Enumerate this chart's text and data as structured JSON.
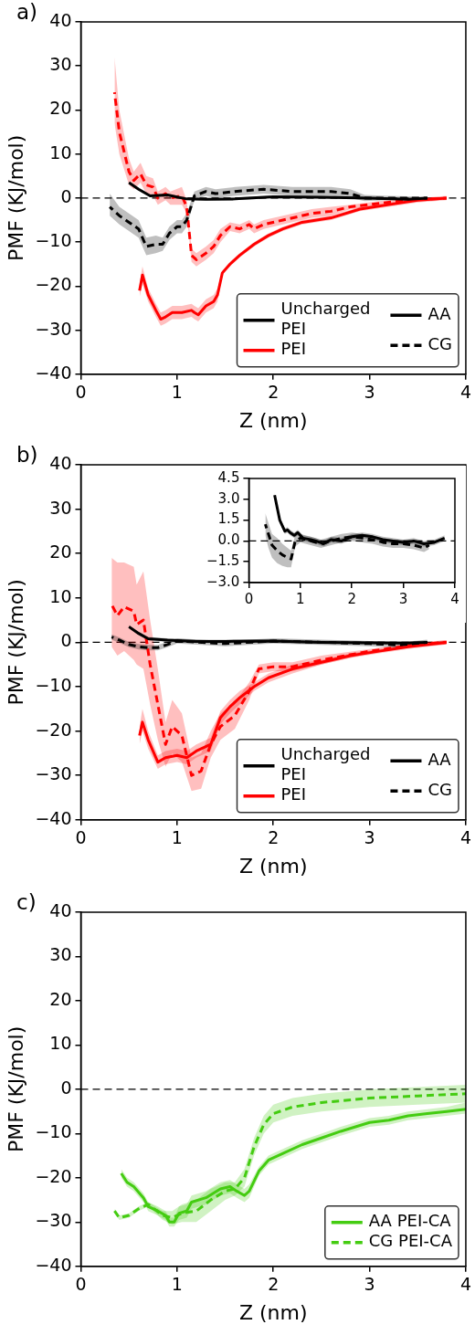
{
  "chart_data": [
    {
      "type": "line",
      "title": "a)",
      "xlabel": "Z (nm)",
      "ylabel": "PMF (KJ/mol)",
      "xlim": [
        0,
        4
      ],
      "ylim": [
        -40,
        40
      ],
      "xticks": [
        0,
        1,
        2,
        3,
        4
      ],
      "yticks": [
        -40,
        -30,
        -20,
        -10,
        0,
        10,
        20,
        30,
        40
      ],
      "marker": "none",
      "legend": "bottom right",
      "ref_lines": [
        {
          "axis": "y",
          "value": 0,
          "color": "#000000",
          "line_style": "dashed"
        }
      ],
      "annotations": [
        "AA",
        "CG"
      ],
      "series": [
        {
          "name": "Uncharged PEI",
          "color": "#000000",
          "line_style": "solid",
          "x": [
            0.5,
            0.6,
            0.72,
            0.9,
            1.1,
            1.3,
            1.6,
            2,
            2.5,
            3,
            3.4,
            3.6
          ],
          "values": [
            3.5,
            2,
            0.5,
            0.7,
            -0.2,
            -0.3,
            -0.2,
            0.3,
            0.2,
            0,
            -0.3,
            0
          ],
          "lower": [
            3.2,
            1.7,
            0.2,
            0.4,
            -0.5,
            -0.6,
            -0.5,
            0,
            -0.1,
            -0.3,
            -0.6,
            -0.3
          ],
          "upper": [
            3.8,
            2.3,
            0.8,
            1,
            0.1,
            0,
            0.1,
            0.6,
            0.5,
            0.3,
            0,
            0.3
          ]
        },
        {
          "color": "#000000",
          "line_style": "dashed",
          "x": [
            0.3,
            0.4,
            0.5,
            0.6,
            0.68,
            0.78,
            0.85,
            0.92,
            1.0,
            1.05,
            1.1,
            1.18,
            1.3,
            1.4,
            1.6,
            1.9,
            2.2,
            2.6,
            2.8,
            2.95,
            3.2,
            3.4,
            3.6
          ],
          "values": [
            -2,
            -4,
            -5.5,
            -7,
            -11,
            -10.5,
            -10.5,
            -8,
            -6.5,
            -6.5,
            -5,
            0.5,
            1.5,
            1,
            1.5,
            2,
            1.5,
            1.5,
            1,
            0,
            0,
            0,
            0
          ],
          "lower": [
            -4,
            -6,
            -7.5,
            -9,
            -13,
            -12.5,
            -12,
            -9.5,
            -8,
            -8,
            -6.5,
            -0.5,
            0.5,
            0,
            0.5,
            1,
            0.5,
            0.5,
            0,
            -0.7,
            -0.5,
            -0.4,
            -0.3
          ],
          "upper": [
            1,
            -2,
            -3.5,
            -5,
            -9,
            -8.5,
            -9,
            -6.5,
            -5,
            -5,
            -3.5,
            1.5,
            2.5,
            2,
            2.5,
            3,
            2.5,
            2.5,
            2,
            0.7,
            0.5,
            0.4,
            0.3
          ]
        },
        {
          "name": "PEI",
          "color": "#ff0000",
          "line_style": "solid",
          "x": [
            0.61,
            0.64,
            0.7,
            0.78,
            0.83,
            0.88,
            0.95,
            1.05,
            1.15,
            1.18,
            1.22,
            1.3,
            1.38,
            1.42,
            1.47,
            1.55,
            1.65,
            1.8,
            1.95,
            2.1,
            2.3,
            2.6,
            2.9,
            3.2,
            3.5,
            3.8
          ],
          "values": [
            -21,
            -17.5,
            -22,
            -25.5,
            -27.5,
            -27,
            -26,
            -26,
            -25.5,
            -26,
            -26.5,
            -24.5,
            -23.5,
            -22,
            -17,
            -15,
            -13,
            -10.5,
            -8.5,
            -7,
            -5.5,
            -4.5,
            -2.5,
            -1.5,
            -0.5,
            0
          ],
          "lower": [
            -22.5,
            -19.5,
            -23.5,
            -27,
            -29,
            -28.5,
            -27.5,
            -27.5,
            -27,
            -27.5,
            -28,
            -26,
            -25,
            -23.5,
            -17.5,
            -15.5,
            -13.5,
            -11,
            -9,
            -7.5,
            -6,
            -5,
            -3,
            -2,
            -1,
            -0.5
          ],
          "upper": [
            -19.5,
            -15.5,
            -20.5,
            -24,
            -26,
            -25.5,
            -24.5,
            -24.5,
            -24,
            -24.5,
            -25,
            -23,
            -22,
            -20.5,
            -16.5,
            -14.5,
            -12.5,
            -10,
            -8,
            -6.5,
            -5,
            -4,
            -2,
            -1,
            0,
            0.5
          ]
        },
        {
          "color": "#ff0000",
          "line_style": "dashed",
          "x": [
            0.35,
            0.4,
            0.5,
            0.55,
            0.62,
            0.68,
            0.75,
            0.8,
            0.88,
            0.93,
            1.05,
            1.1,
            1.15,
            1.2,
            1.3,
            1.38,
            1.45,
            1.55,
            1.65,
            1.75,
            1.8,
            1.9,
            2.1,
            2.4,
            2.6,
            2.8,
            3.1,
            3.4,
            3.8
          ],
          "values": [
            24,
            15,
            6,
            4,
            5.5,
            3,
            2.5,
            0,
            1,
            0,
            0.5,
            -2,
            -13,
            -14,
            -12.5,
            -11,
            -8.5,
            -6.5,
            -7,
            -6,
            -7,
            -6,
            -5,
            -3.5,
            -3,
            -2,
            -1.2,
            -0.5,
            0
          ],
          "lower": [
            17,
            10,
            3,
            2,
            3.5,
            1,
            0.5,
            -1.5,
            -0.5,
            -1.5,
            -1.5,
            -3.5,
            -14.5,
            -15.5,
            -14,
            -12.5,
            -10,
            -7.5,
            -8,
            -7,
            -8,
            -7,
            -6,
            -4.5,
            -4,
            -2.5,
            -1.7,
            -1,
            -0.3
          ],
          "upper": [
            32,
            20,
            9,
            6,
            8,
            5,
            4.5,
            1.5,
            2.5,
            1.5,
            2.5,
            -0.5,
            -11.5,
            -12.5,
            -11,
            -9.5,
            -7,
            -5.5,
            -6,
            -5,
            -6,
            -5,
            -4,
            -2.5,
            -2,
            -1.5,
            -0.7,
            0,
            0.3
          ]
        }
      ]
    },
    {
      "type": "line",
      "title": "b)",
      "xlabel": "Z (nm)",
      "ylabel": "PMF (KJ/mol)",
      "xlim": [
        0,
        4
      ],
      "ylim": [
        -40,
        40
      ],
      "xticks": [
        0,
        1,
        2,
        3,
        4
      ],
      "yticks": [
        -40,
        -30,
        -20,
        -10,
        0,
        10,
        20,
        30,
        40
      ],
      "marker": "none",
      "legend": "bottom right",
      "ref_lines": [
        {
          "axis": "y",
          "value": 0,
          "color": "#000000",
          "line_style": "dashed"
        }
      ],
      "annotations": [
        "AA",
        "CG"
      ],
      "series": [
        {
          "name": "Uncharged PEI",
          "color": "#000000",
          "line_style": "solid",
          "x": [
            0.5,
            0.6,
            0.7,
            0.9,
            1.2,
            1.5,
            2,
            2.5,
            3,
            3.4,
            3.6
          ],
          "values": [
            3.5,
            2,
            0.8,
            0.5,
            0.2,
            0.2,
            0.3,
            0,
            -0.1,
            -0.2,
            0
          ],
          "lower": [
            3.1,
            1.6,
            0.4,
            0.1,
            -0.2,
            -0.2,
            -0.1,
            -0.4,
            -0.5,
            -0.6,
            -0.4
          ],
          "upper": [
            3.9,
            2.4,
            1.2,
            0.9,
            0.6,
            0.6,
            0.7,
            0.4,
            0.3,
            0.2,
            0.4
          ]
        },
        {
          "color": "#000000",
          "line_style": "dashed",
          "x": [
            0.32,
            0.4,
            0.5,
            0.6,
            0.7,
            0.8,
            0.9,
            1.0,
            1.5,
            2.0,
            2.5,
            3.0,
            3.3,
            3.6
          ],
          "values": [
            1.2,
            0.5,
            -0.5,
            -1,
            -1.2,
            -1.2,
            -0.5,
            0.3,
            -0.3,
            0.3,
            0,
            -0.3,
            -0.6,
            0
          ],
          "lower": [
            0.6,
            -0.1,
            -1.1,
            -1.6,
            -1.8,
            -1.8,
            -1.1,
            -0.3,
            -0.9,
            -0.3,
            -0.6,
            -0.9,
            -1.2,
            -0.6
          ],
          "upper": [
            1.8,
            1.1,
            0.1,
            -0.4,
            -0.6,
            -0.6,
            0.1,
            0.9,
            0.3,
            0.9,
            0.6,
            0.3,
            0,
            0.6
          ]
        },
        {
          "name": "PEI",
          "color": "#ff0000",
          "line_style": "solid",
          "x": [
            0.61,
            0.64,
            0.7,
            0.8,
            0.88,
            1.0,
            1.1,
            1.2,
            1.35,
            1.45,
            1.55,
            1.65,
            1.8,
            1.95,
            2.2,
            2.5,
            2.8,
            3.1,
            3.4,
            3.8
          ],
          "values": [
            -21,
            -18,
            -22,
            -27,
            -26,
            -25.5,
            -26,
            -24.5,
            -23,
            -17,
            -14.5,
            -12.5,
            -10,
            -8,
            -6,
            -4.5,
            -3,
            -2,
            -1,
            0
          ],
          "lower": [
            -23,
            -20,
            -24,
            -28.5,
            -27.5,
            -27,
            -27.5,
            -26,
            -24.5,
            -18.5,
            -16,
            -14,
            -11,
            -9,
            -7,
            -5,
            -3.5,
            -2.5,
            -1.5,
            -0.5
          ],
          "upper": [
            -19,
            -15,
            -20,
            -25.5,
            -24.5,
            -24,
            -24.5,
            -23,
            -21.5,
            -15.5,
            -13,
            -11,
            -9,
            -7,
            -5,
            -4,
            -2.5,
            -1.5,
            -0.5,
            0.5
          ]
        },
        {
          "color": "#ff0000",
          "line_style": "dashed",
          "x": [
            0.32,
            0.38,
            0.45,
            0.55,
            0.58,
            0.65,
            0.72,
            0.8,
            0.88,
            0.95,
            1.05,
            1.15,
            1.25,
            1.35,
            1.45,
            1.6,
            1.75,
            1.85,
            2.0,
            2.2,
            2.5,
            3.0,
            3.5,
            3.8
          ],
          "values": [
            8.5,
            6,
            8,
            7,
            4,
            5,
            -5,
            -14,
            -23,
            -19,
            -21,
            -30,
            -29,
            -23,
            -19,
            -16.5,
            -11,
            -6,
            -5.5,
            -5.5,
            -4,
            -2,
            -0.5,
            0
          ],
          "lower": [
            -1,
            -3,
            -2,
            -4,
            -5,
            -6,
            -14,
            -22,
            -28,
            -25,
            -27,
            -33.5,
            -33,
            -26,
            -22,
            -19.5,
            -13,
            -7,
            -6.5,
            -6.5,
            -5,
            -2.5,
            -1,
            -0.5
          ],
          "upper": [
            19,
            18,
            18,
            17,
            13,
            16,
            5,
            -6,
            -18,
            -13,
            -16,
            -26,
            -25,
            -20,
            -16,
            -13.5,
            -9,
            -5,
            -4.5,
            -4.5,
            -3,
            -1.5,
            0,
            0.5
          ]
        }
      ]
    },
    {
      "type": "line",
      "xlim": [
        0,
        4
      ],
      "ylim": [
        -3,
        4.5
      ],
      "xticks": [
        0,
        1,
        2,
        3,
        4
      ],
      "yticks": [
        {
          "value": -3,
          "label": "−3.0"
        },
        {
          "value": -1.5,
          "label": "−1.5"
        },
        {
          "value": 0,
          "label": "0.0"
        },
        {
          "value": 1.5,
          "label": "1.5"
        },
        {
          "value": 3,
          "label": "3.0"
        },
        {
          "value": 4.5,
          "label": "4.5"
        }
      ],
      "marker": "none",
      "ref_lines": [
        {
          "axis": "y",
          "value": 0,
          "color": "#000000",
          "line_style": "dashed"
        }
      ],
      "series": [
        {
          "color": "#000000",
          "line_style": "solid",
          "x": [
            0.5,
            0.6,
            0.7,
            0.75,
            0.8,
            0.88,
            0.95,
            1.05,
            1.2,
            1.3,
            1.45,
            1.6,
            1.8,
            2.0,
            2.2,
            2.4,
            2.6,
            2.8,
            3.0,
            3.2,
            3.4,
            3.6,
            3.8
          ],
          "values": [
            3.3,
            1.5,
            0.7,
            0.8,
            0.6,
            0.4,
            0.6,
            0.2,
            0.1,
            0,
            -0.2,
            0.1,
            0,
            0.3,
            0.4,
            0.3,
            0.1,
            0,
            -0.1,
            0,
            -0.2,
            -0.1,
            0.2
          ],
          "lower": [
            3.1,
            1.3,
            0.5,
            0.6,
            0.4,
            0.2,
            0.4,
            0,
            -0.1,
            -0.2,
            -0.4,
            -0.1,
            -0.2,
            0.1,
            0.2,
            0.1,
            -0.1,
            -0.2,
            -0.3,
            -0.2,
            -0.4,
            -0.3,
            0
          ],
          "upper": [
            3.5,
            1.7,
            0.9,
            1,
            0.8,
            0.6,
            0.8,
            0.4,
            0.3,
            0.2,
            0,
            0.3,
            0.2,
            0.5,
            0.6,
            0.5,
            0.3,
            0.2,
            0.1,
            0.2,
            0,
            0.1,
            0.4
          ]
        },
        {
          "color": "#000000",
          "line_style": "dashed",
          "x": [
            0.32,
            0.38,
            0.45,
            0.55,
            0.65,
            0.75,
            0.82,
            0.9,
            1.0,
            1.2,
            1.4,
            1.6,
            1.8,
            2.0,
            2.2,
            2.4,
            2.6,
            2.8,
            3.0,
            3.2,
            3.4,
            3.5
          ],
          "values": [
            1.2,
            0.5,
            -0.3,
            -0.7,
            -1.0,
            -1.2,
            -1.3,
            0,
            0.2,
            0,
            -0.2,
            0,
            0.2,
            0.3,
            0.2,
            0.1,
            -0.1,
            -0.2,
            -0.2,
            -0.3,
            -0.5,
            -0.3
          ],
          "lower": [
            0.4,
            -0.5,
            -1.2,
            -1.6,
            -1.8,
            -1.9,
            -1.9,
            -0.4,
            -0.1,
            -0.3,
            -0.5,
            -0.3,
            -0.1,
            0,
            -0.1,
            -0.2,
            -0.4,
            -0.5,
            -0.5,
            -0.6,
            -0.8,
            -0.6
          ],
          "upper": [
            2.0,
            1.3,
            0.5,
            0.2,
            -0.2,
            -0.5,
            -0.7,
            0.4,
            0.5,
            0.3,
            0.1,
            0.3,
            0.5,
            0.6,
            0.5,
            0.4,
            0.2,
            0.1,
            0.1,
            0,
            -0.2,
            0
          ]
        }
      ]
    },
    {
      "type": "line",
      "title": "c)",
      "xlabel": "Z (nm)",
      "ylabel": "PMF (KJ/mol)",
      "xlim": [
        0,
        4
      ],
      "ylim": [
        -40,
        40
      ],
      "xticks": [
        0,
        1,
        2,
        3,
        4
      ],
      "yticks": [
        -40,
        -30,
        -20,
        -10,
        0,
        10,
        20,
        30,
        40
      ],
      "marker": "none",
      "legend": "bottom right",
      "ref_lines": [
        {
          "axis": "y",
          "value": 0,
          "color": "#000000",
          "line_style": "dashed"
        }
      ],
      "series": [
        {
          "name": "AA PEI-CA",
          "color": "#44cc11",
          "line_style": "solid",
          "x": [
            0.42,
            0.48,
            0.55,
            0.65,
            0.7,
            0.8,
            0.88,
            0.92,
            0.97,
            1.02,
            1.1,
            1.15,
            1.3,
            1.45,
            1.55,
            1.62,
            1.7,
            1.75,
            1.85,
            1.95,
            2.1,
            2.3,
            2.5,
            2.7,
            3.0,
            3.2,
            3.4,
            3.6,
            3.8,
            4.0
          ],
          "values": [
            -19,
            -21,
            -22,
            -24.5,
            -26.5,
            -27.5,
            -28.5,
            -30,
            -30,
            -28,
            -27.5,
            -25.5,
            -24.5,
            -22.5,
            -22,
            -23,
            -24,
            -23,
            -18.5,
            -16,
            -14.5,
            -12.5,
            -11,
            -9.5,
            -7.5,
            -7,
            -6,
            -5.5,
            -5,
            -4.5
          ],
          "lower": [
            -20,
            -22,
            -23,
            -25.5,
            -27.5,
            -28.5,
            -29.5,
            -31,
            -31,
            -29.5,
            -29,
            -27,
            -26,
            -24,
            -23.5,
            -24.5,
            -25.5,
            -24.5,
            -19.5,
            -17,
            -15.5,
            -13.5,
            -12,
            -10.5,
            -8.5,
            -8,
            -7,
            -6.5,
            -6,
            -5.5
          ],
          "upper": [
            -18,
            -20,
            -21,
            -23.5,
            -25.5,
            -26.5,
            -27.5,
            -29,
            -29,
            -26.5,
            -26,
            -24,
            -23,
            -21,
            -20.5,
            -21.5,
            -22.5,
            -21.5,
            -17.5,
            -15,
            -13.5,
            -11.5,
            -10,
            -8.5,
            -6.5,
            -6,
            -5,
            -4.5,
            -4,
            -3
          ]
        },
        {
          "name": "CG PEI-CA",
          "color": "#44cc11",
          "line_style": "dashed",
          "x": [
            0.35,
            0.4,
            0.5,
            0.6,
            0.7,
            0.85,
            0.95,
            1.05,
            1.2,
            1.35,
            1.5,
            1.6,
            1.7,
            1.8,
            1.9,
            2.0,
            2.2,
            2.5,
            3.0,
            3.5,
            4.0
          ],
          "values": [
            -27.5,
            -29,
            -28.5,
            -27,
            -26,
            -28.5,
            -29,
            -28,
            -27.5,
            -25,
            -23,
            -22.5,
            -20,
            -13,
            -8,
            -5.5,
            -4,
            -3,
            -2,
            -1.5,
            -1
          ],
          "lower": [
            -28,
            -29.5,
            -29,
            -27.5,
            -26.5,
            -29.5,
            -30.5,
            -30,
            -30,
            -27.5,
            -25,
            -24,
            -22,
            -15,
            -10,
            -7.5,
            -6,
            -5,
            -4,
            -3.5,
            -3
          ],
          "upper": [
            -27,
            -28.5,
            -28,
            -26.5,
            -25.5,
            -27.5,
            -27.5,
            -26,
            -25,
            -22.5,
            -21,
            -21,
            -18,
            -11,
            -6,
            -3.5,
            -2,
            -1,
            0,
            0.5,
            1
          ]
        }
      ]
    }
  ]
}
